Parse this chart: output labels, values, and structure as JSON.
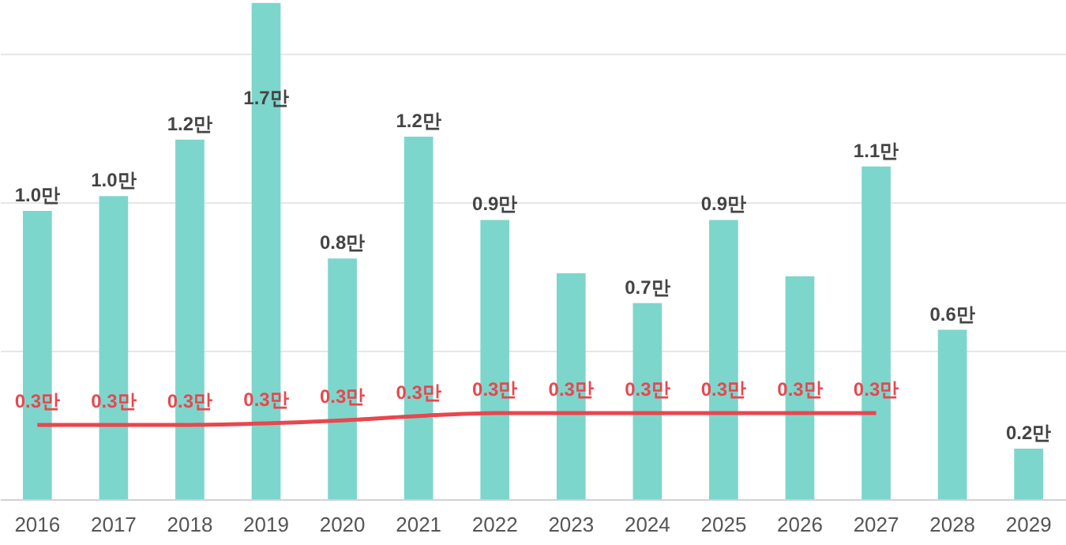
{
  "chart_data": {
    "type": "bar",
    "categories": [
      "2016",
      "2017",
      "2018",
      "2019",
      "2020",
      "2021",
      "2022",
      "2023",
      "2024",
      "2025",
      "2026",
      "2027",
      "2028",
      "2029"
    ],
    "series": [
      {
        "color": "#7dd6cc",
        "values": [
          0.97,
          1.02,
          1.21,
          1.67,
          0.81,
          1.22,
          0.94,
          0.76,
          0.66,
          0.94,
          0.75,
          1.12,
          0.57,
          0.17
        ],
        "value_labels": [
          "1.0만",
          "1.0만",
          "1.2만",
          "1.7만",
          "0.8만",
          "1.2만",
          "0.9만",
          null,
          "0.7만",
          "0.9만",
          null,
          "1.1만",
          "0.6만",
          "0.2만"
        ]
      },
      {
        "type": "line",
        "color": "#e8474f",
        "values": [
          0.25,
          0.25,
          0.25,
          0.255,
          0.265,
          0.28,
          0.29,
          0.29,
          0.29,
          0.29,
          0.29,
          0.29,
          null,
          null
        ],
        "value_labels": [
          "0.3만",
          "0.3만",
          "0.3만",
          "0.3만",
          "0.3만",
          "0.3만",
          "0.3만",
          "0.3만",
          "0.3만",
          "0.3만",
          "0.3만",
          "0.3만",
          null,
          null
        ]
      }
    ],
    "ylim": [
      0,
      1.68
    ],
    "yticks": [
      {
        "value": 0,
        "label": null
      },
      {
        "value": 0.5,
        "label": null
      },
      {
        "value": 1.0,
        "label": null
      },
      {
        "value": 1.5,
        "label": null
      }
    ],
    "grid": "y",
    "tick_labels": "x"
  }
}
